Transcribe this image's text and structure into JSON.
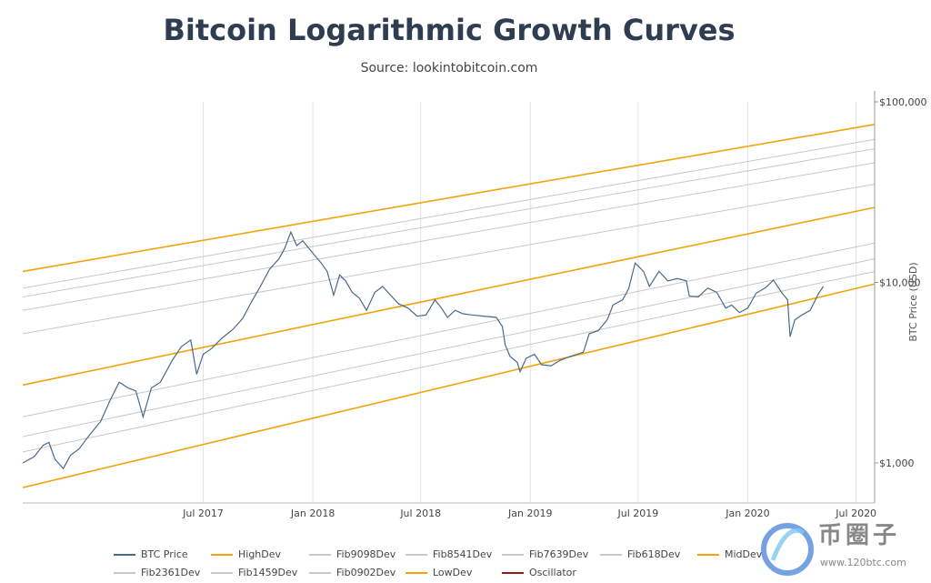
{
  "chart_data": {
    "type": "line",
    "title": "Bitcoin Logarithmic Growth Curves",
    "subtitle": "Source: lookintobitcoin.com",
    "ylabel": "BTC Price (USD)",
    "yscale": "log",
    "ylim": [
      600,
      100000
    ],
    "xlim": [
      "2016-09-01",
      "2020-08-01"
    ],
    "x_ticks": [
      {
        "date": "2017-07-01",
        "label": "Jul 2017"
      },
      {
        "date": "2018-01-01",
        "label": "Jan 2018"
      },
      {
        "date": "2018-07-01",
        "label": "Jul 2018"
      },
      {
        "date": "2019-01-01",
        "label": "Jan 2019"
      },
      {
        "date": "2019-07-01",
        "label": "Jul 2019"
      },
      {
        "date": "2020-01-01",
        "label": "Jan 2020"
      },
      {
        "date": "2020-07-01",
        "label": "Jul 2020"
      }
    ],
    "y_ticks": [
      {
        "value": 1000,
        "label": "$1,000"
      },
      {
        "value": 10000,
        "label": "$10,000"
      },
      {
        "value": 100000,
        "label": "$100,000"
      }
    ],
    "bands": [
      {
        "name": "HighDev",
        "color": "#f0a30a",
        "start": 11500,
        "end": 75000
      },
      {
        "name": "Fib9098Dev",
        "color": "#c8c8c8",
        "start": 9300,
        "end": 62000
      },
      {
        "name": "Fib8541Dev",
        "color": "#c8c8c8",
        "start": 8300,
        "end": 55000
      },
      {
        "name": "Fib7639Dev",
        "color": "#c8c8c8",
        "start": 7000,
        "end": 46000
      },
      {
        "name": "Fib618Dev",
        "color": "#c8c8c8",
        "start": 5200,
        "end": 35000
      },
      {
        "name": "MidDev",
        "color": "#f0a30a",
        "start": 2700,
        "end": 26000
      },
      {
        "name": "Fib2361Dev",
        "color": "#c8c8c8",
        "start": 1800,
        "end": 16500
      },
      {
        "name": "Fib1459Dev",
        "color": "#c8c8c8",
        "start": 1400,
        "end": 13500
      },
      {
        "name": "Fib0902Dev",
        "color": "#c8c8c8",
        "start": 1150,
        "end": 11500
      },
      {
        "name": "LowDev",
        "color": "#f0a30a",
        "start": 730,
        "end": 9800
      }
    ],
    "series": [
      {
        "name": "BTC Price",
        "color": "#4a6a8a",
        "points": [
          [
            "2016-09-01",
            1000
          ],
          [
            "2016-09-20",
            1080
          ],
          [
            "2016-10-05",
            1250
          ],
          [
            "2016-10-15",
            1300
          ],
          [
            "2016-10-25",
            1050
          ],
          [
            "2016-11-08",
            930
          ],
          [
            "2016-11-20",
            1100
          ],
          [
            "2016-12-05",
            1200
          ],
          [
            "2016-12-20",
            1400
          ],
          [
            "2017-01-10",
            1700
          ],
          [
            "2017-01-25",
            2200
          ],
          [
            "2017-02-10",
            2800
          ],
          [
            "2017-02-25",
            2600
          ],
          [
            "2017-03-10",
            2500
          ],
          [
            "2017-03-22",
            1800
          ],
          [
            "2017-04-05",
            2600
          ],
          [
            "2017-04-20",
            2800
          ],
          [
            "2017-05-10",
            3700
          ],
          [
            "2017-05-25",
            4400
          ],
          [
            "2017-06-10",
            4800
          ],
          [
            "2017-06-20",
            3100
          ],
          [
            "2017-07-01",
            4000
          ],
          [
            "2017-07-15",
            4300
          ],
          [
            "2017-08-01",
            4900
          ],
          [
            "2017-08-20",
            5500
          ],
          [
            "2017-09-05",
            6300
          ],
          [
            "2017-09-20",
            7800
          ],
          [
            "2017-10-05",
            9500
          ],
          [
            "2017-10-20",
            11800
          ],
          [
            "2017-11-05",
            13500
          ],
          [
            "2017-11-15",
            15500
          ],
          [
            "2017-11-25",
            19000
          ],
          [
            "2017-12-05",
            16000
          ],
          [
            "2017-12-15",
            17000
          ],
          [
            "2017-12-25",
            15500
          ],
          [
            "2018-01-05",
            14000
          ],
          [
            "2018-01-15",
            12800
          ],
          [
            "2018-01-25",
            11500
          ],
          [
            "2018-02-05",
            8500
          ],
          [
            "2018-02-15",
            11000
          ],
          [
            "2018-02-25",
            10200
          ],
          [
            "2018-03-08",
            8800
          ],
          [
            "2018-03-20",
            8200
          ],
          [
            "2018-04-01",
            7000
          ],
          [
            "2018-04-15",
            8800
          ],
          [
            "2018-04-28",
            9500
          ],
          [
            "2018-05-10",
            8600
          ],
          [
            "2018-05-25",
            7600
          ],
          [
            "2018-06-10",
            7200
          ],
          [
            "2018-06-25",
            6500
          ],
          [
            "2018-07-10",
            6600
          ],
          [
            "2018-07-25",
            8000
          ],
          [
            "2018-08-05",
            7200
          ],
          [
            "2018-08-15",
            6400
          ],
          [
            "2018-08-28",
            7000
          ],
          [
            "2018-09-10",
            6700
          ],
          [
            "2018-09-25",
            6600
          ],
          [
            "2018-10-15",
            6500
          ],
          [
            "2018-11-05",
            6400
          ],
          [
            "2018-11-15",
            5700
          ],
          [
            "2018-11-20",
            4500
          ],
          [
            "2018-11-28",
            3900
          ],
          [
            "2018-12-10",
            3600
          ],
          [
            "2018-12-15",
            3200
          ],
          [
            "2018-12-25",
            3800
          ],
          [
            "2019-01-08",
            4000
          ],
          [
            "2019-01-20",
            3500
          ],
          [
            "2019-02-05",
            3450
          ],
          [
            "2019-02-20",
            3700
          ],
          [
            "2019-03-10",
            3900
          ],
          [
            "2019-03-31",
            4100
          ],
          [
            "2019-04-10",
            5200
          ],
          [
            "2019-04-25",
            5400
          ],
          [
            "2019-05-10",
            6200
          ],
          [
            "2019-05-20",
            7500
          ],
          [
            "2019-06-05",
            8000
          ],
          [
            "2019-06-15",
            9200
          ],
          [
            "2019-06-26",
            12800
          ],
          [
            "2019-07-10",
            11500
          ],
          [
            "2019-07-20",
            9500
          ],
          [
            "2019-08-05",
            11500
          ],
          [
            "2019-08-20",
            10200
          ],
          [
            "2019-09-05",
            10500
          ],
          [
            "2019-09-20",
            10200
          ],
          [
            "2019-09-25",
            8400
          ],
          [
            "2019-10-10",
            8300
          ],
          [
            "2019-10-26",
            9300
          ],
          [
            "2019-11-10",
            8800
          ],
          [
            "2019-11-25",
            7200
          ],
          [
            "2019-12-05",
            7500
          ],
          [
            "2019-12-18",
            6800
          ],
          [
            "2020-01-01",
            7200
          ],
          [
            "2020-01-15",
            8700
          ],
          [
            "2020-02-01",
            9400
          ],
          [
            "2020-02-13",
            10300
          ],
          [
            "2020-02-28",
            8700
          ],
          [
            "2020-03-08",
            8000
          ],
          [
            "2020-03-12",
            5000
          ],
          [
            "2020-03-20",
            6200
          ],
          [
            "2020-04-01",
            6600
          ],
          [
            "2020-04-15",
            7000
          ],
          [
            "2020-04-29",
            8700
          ],
          [
            "2020-05-07",
            9500
          ]
        ]
      }
    ],
    "legend": [
      {
        "name": "BTC Price",
        "color": "#4a6a8a"
      },
      {
        "name": "HighDev",
        "color": "#f0a30a"
      },
      {
        "name": "Fib9098Dev",
        "color": "#c8c8c8"
      },
      {
        "name": "Fib8541Dev",
        "color": "#c8c8c8"
      },
      {
        "name": "Fib7639Dev",
        "color": "#c8c8c8"
      },
      {
        "name": "Fib618Dev",
        "color": "#c8c8c8"
      },
      {
        "name": "MidDev",
        "color": "#f0a30a"
      },
      {
        "name": "Fib2361Dev",
        "color": "#c8c8c8"
      },
      {
        "name": "Fib1459Dev",
        "color": "#c8c8c8"
      },
      {
        "name": "Fib0902Dev",
        "color": "#c8c8c8"
      },
      {
        "name": "LowDev",
        "color": "#f0a30a"
      },
      {
        "name": "Oscillator",
        "color": "#8b1a1a"
      }
    ]
  },
  "watermark": {
    "text": "币圈子",
    "url": "www.120btc.com"
  }
}
